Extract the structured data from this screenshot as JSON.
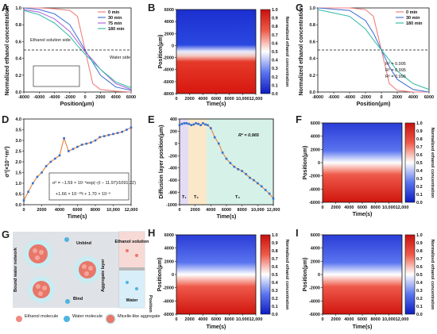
{
  "panels": {
    "A": {
      "label": "A",
      "ylabel": "Normalized ethanol concentration",
      "xlabel": "Position(μm)",
      "xticks": [
        "-8000",
        "-6000",
        "-4000",
        "-2000",
        "0",
        "2000",
        "4000",
        "6000"
      ],
      "yticks": [
        "0.0",
        "0.2",
        "0.4",
        "0.6",
        "0.8",
        "1.0"
      ],
      "legend": [
        "0 min",
        "30 min",
        "75 min",
        "180 min"
      ],
      "annot_left": "Ethanol solution side",
      "annot_right": "Water side"
    },
    "B": {
      "label": "B",
      "ylabel": "Position(μm)",
      "xlabel": "Time(s)",
      "xticks": [
        "0",
        "2000",
        "4000",
        "6000",
        "8000",
        "10,000",
        "12,000"
      ],
      "yticks": [
        "6000",
        "4000",
        "2000",
        "0",
        "-2000",
        "-4000",
        "-6000",
        "-8000"
      ],
      "cbar_label": "Normalized ethanol concentration",
      "cbar_ticks": [
        "1.0",
        "0.9",
        "0.8",
        "0.7",
        "0.6",
        "0.5",
        "0.4",
        "0.3",
        "0.2",
        "0.1",
        "0.0"
      ]
    },
    "C": {
      "label": "C",
      "ylabel": "Normalized ethanol concentration",
      "xlabel": "Position(μm)",
      "xticks": [
        "-8000",
        "-6000",
        "-4000",
        "-2000",
        "0",
        "2000",
        "4000",
        "6000"
      ],
      "yticks": [
        "0.0",
        "0.2",
        "0.4",
        "0.6",
        "0.8",
        "1.0"
      ],
      "legend": [
        "0 min",
        "30 min",
        "180 min"
      ],
      "r2": [
        "R² = 0.995",
        "R² = 0.995",
        "R² = 0.996"
      ]
    },
    "D": {
      "label": "D",
      "ylabel": "σ²(×10⁻⁶m²)",
      "xlabel": "Time(s)",
      "xticks": [
        "0",
        "2000",
        "4000",
        "6000",
        "8000",
        "10,000",
        "12,000"
      ],
      "yticks": [
        "0.0",
        "0.5",
        "1.0",
        "1.5",
        "2.0",
        "2.5",
        "3.0",
        "3.5",
        "4.0"
      ],
      "eq1": "σ² = −1.59 × 10⁻⁶exp(−(t − 11.97)/1091.22)",
      "eq2": "+1.66 × 10⁻¹⁰t + 1.70 × 10⁻⁶"
    },
    "E": {
      "label": "E",
      "ylabel": "Diffusion layer position(μm)",
      "xlabel": "Time(s)",
      "xticks": [
        "0",
        "2000",
        "4000",
        "6000",
        "8000",
        "10,000",
        "12,000"
      ],
      "yticks": [
        "400",
        "200",
        "0",
        "-200",
        "-400",
        "-600",
        "-800",
        "-1000"
      ],
      "r2": "R² = 0.965",
      "t1": "T₁",
      "t2": "T₂",
      "t3": "T₃"
    },
    "F": {
      "label": "F",
      "ylabel": "Position(μm)",
      "xlabel": "Time(s)",
      "xticks": [
        "0",
        "2000",
        "4000",
        "6000",
        "8000",
        "10,000",
        "12,000"
      ],
      "yticks": [
        "6000",
        "4000",
        "2000",
        "0",
        "-2000",
        "-4000",
        "-6000"
      ],
      "cbar_label": "Normalized ethanol concentration",
      "cbar_ticks": [
        "1.0",
        "0.9",
        "0.8",
        "0.7",
        "0.6",
        "0.5",
        "0.4",
        "0.3",
        "0.2",
        "0.1",
        "0.0"
      ]
    },
    "G": {
      "label": "G",
      "bound_water": "Bound water network",
      "aggregate_layer": "Aggregate layer",
      "unbind": "Unbind",
      "bind": "Bind",
      "ethanol_solution": "Ethanol solution",
      "water": "Water",
      "position": "Position",
      "legend_ethanol": "Ethanol molecule",
      "legend_water": "Water molecule",
      "legend_micelle": "Micelle-like aggregate"
    },
    "H": {
      "label": "H",
      "ylabel": "Position(μm)",
      "xlabel": "Time(s)",
      "xticks": [
        "0",
        "2000",
        "4000",
        "6000",
        "8000",
        "10,000",
        "12,000"
      ],
      "yticks": [
        "6000",
        "4000",
        "2000",
        "0",
        "-2000",
        "-4000",
        "-6000"
      ],
      "cbar_label": "Normalized ethanol concentration",
      "cbar_ticks": [
        "1.0",
        "0.9",
        "0.8",
        "0.7",
        "0.6",
        "0.5",
        "0.4",
        "0.3",
        "0.2",
        "0.1",
        "0.0"
      ]
    },
    "I": {
      "label": "I",
      "ylabel": "Position(μm)",
      "xlabel": "Time(s)",
      "xticks": [
        "0",
        "2000",
        "4000",
        "6000",
        "8000",
        "10,000",
        "12,000"
      ],
      "yticks": [
        "6000",
        "4000",
        "2000",
        "0",
        "-2000",
        "-4000",
        "-6000"
      ],
      "cbar_label": "Normalized ethanol concentration",
      "cbar_ticks": [
        "1.0",
        "0.9",
        "0.8",
        "0.7",
        "0.6",
        "0.5",
        "0.4",
        "0.3",
        "0.2",
        "0.1",
        "0.0"
      ]
    }
  },
  "colors": {
    "t0": "#f08080",
    "t30": "#4a78d8",
    "t75": "#b06ad8",
    "t180": "#3cbfa8",
    "hot": "#e8231e",
    "cold": "#1432d0",
    "fit": "#1a1a1a"
  },
  "chart_data": [
    {
      "panel": "A",
      "type": "line",
      "x_unit": "μm",
      "series": [
        {
          "name": "0 min",
          "x": [
            -8000,
            -6000,
            -4000,
            -2000,
            -1000,
            0,
            1000,
            2000,
            4000,
            6000
          ],
          "y": [
            1.0,
            1.0,
            0.99,
            0.97,
            0.9,
            0.5,
            0.1,
            0.03,
            0.01,
            0.0
          ]
        },
        {
          "name": "30 min",
          "x": [
            -8000,
            -6000,
            -4000,
            -2000,
            -1000,
            0,
            1000,
            2000,
            4000,
            6000
          ],
          "y": [
            1.0,
            0.98,
            0.93,
            0.8,
            0.65,
            0.5,
            0.35,
            0.2,
            0.06,
            0.02
          ]
        },
        {
          "name": "75 min",
          "x": [
            -8000,
            -6000,
            -4000,
            -2000,
            -1000,
            0,
            1000,
            2000,
            4000,
            6000
          ],
          "y": [
            0.98,
            0.95,
            0.87,
            0.72,
            0.6,
            0.48,
            0.38,
            0.27,
            0.1,
            0.03
          ]
        },
        {
          "name": "180 min",
          "x": [
            -8000,
            -6000,
            -4000,
            -2000,
            -1000,
            0,
            1000,
            2000,
            4000,
            6000
          ],
          "y": [
            0.97,
            0.92,
            0.82,
            0.66,
            0.55,
            0.45,
            0.36,
            0.27,
            0.12,
            0.05
          ]
        }
      ],
      "ylim": [
        0,
        1.0
      ],
      "xlim": [
        -8000,
        6000
      ]
    },
    {
      "panel": "C",
      "type": "line",
      "series": [
        {
          "name": "0 min",
          "x": [
            -8000,
            -4000,
            -2000,
            -1000,
            0,
            1000,
            2000,
            4000,
            6000
          ],
          "y": [
            1.0,
            1.0,
            0.98,
            0.9,
            0.5,
            0.1,
            0.02,
            0.0,
            0.0
          ]
        },
        {
          "name": "30 min",
          "x": [
            -8000,
            -4000,
            -2000,
            -1000,
            0,
            1000,
            2000,
            4000,
            6000
          ],
          "y": [
            1.0,
            0.97,
            0.85,
            0.7,
            0.5,
            0.3,
            0.15,
            0.03,
            0.0
          ]
        },
        {
          "name": "180 min",
          "x": [
            -8000,
            -4000,
            -2000,
            -1000,
            0,
            1000,
            2000,
            4000,
            6000
          ],
          "y": [
            0.98,
            0.9,
            0.75,
            0.62,
            0.5,
            0.38,
            0.25,
            0.1,
            0.03
          ]
        }
      ],
      "ylim": [
        0,
        1.0
      ],
      "xlim": [
        -8000,
        6000
      ]
    },
    {
      "panel": "D",
      "type": "scatter",
      "x": [
        0,
        500,
        1000,
        1500,
        2000,
        2500,
        3000,
        3500,
        4000,
        4500,
        5000,
        5500,
        6000,
        6500,
        7000,
        7500,
        8000,
        8500,
        9000,
        9500,
        10000,
        10500,
        11000,
        11500,
        12000
      ],
      "y": [
        0.2,
        0.6,
        1.0,
        1.3,
        1.5,
        1.8,
        2.0,
        2.15,
        2.3,
        3.1,
        2.5,
        2.6,
        2.7,
        2.8,
        2.85,
        2.9,
        3.0,
        3.15,
        3.2,
        3.25,
        3.3,
        3.35,
        3.4,
        3.5,
        3.6
      ],
      "xlim": [
        0,
        12000
      ],
      "ylim": [
        0,
        4.0
      ]
    },
    {
      "panel": "E",
      "type": "scatter",
      "x": [
        0,
        300,
        600,
        900,
        1200,
        1500,
        1800,
        2100,
        2400,
        2700,
        3000,
        3300,
        3600,
        4000,
        4500,
        5000,
        5500,
        6000,
        6500,
        7000,
        7500,
        8000,
        8500,
        9000,
        9500,
        10000,
        10500,
        11000,
        11500,
        12000
      ],
      "y": [
        300,
        320,
        330,
        330,
        320,
        300,
        310,
        330,
        320,
        300,
        330,
        310,
        300,
        250,
        100,
        0,
        -150,
        -250,
        -320,
        -380,
        -420,
        -450,
        -500,
        -560,
        -600,
        -650,
        -700,
        -760,
        -820,
        -900
      ],
      "xlim": [
        0,
        12000
      ],
      "ylim": [
        -1000,
        400
      ]
    }
  ]
}
